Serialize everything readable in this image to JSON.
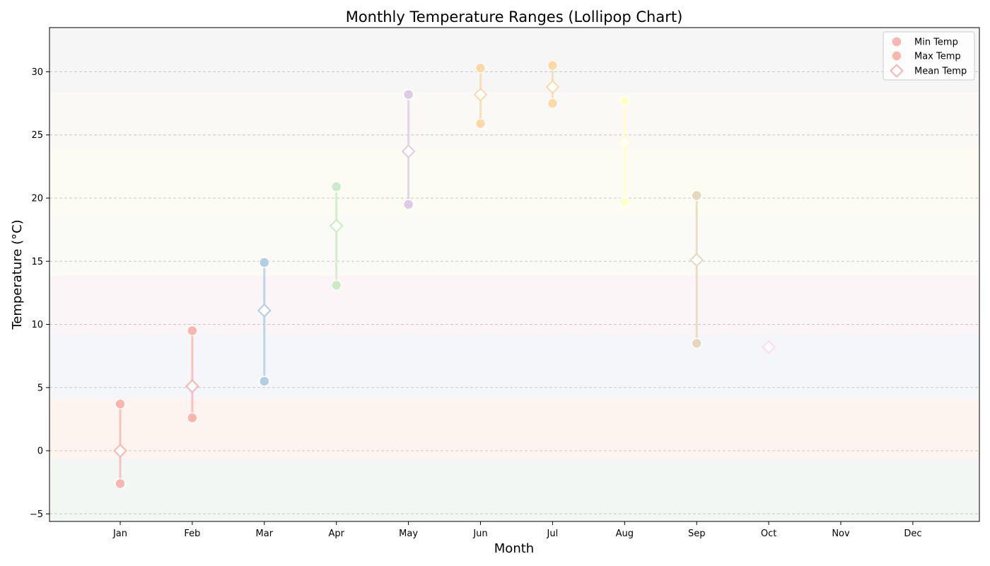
{
  "chart_data": {
    "type": "lollipop",
    "title": "Monthly Temperature Ranges (Lollipop Chart)",
    "xlabel": "Month",
    "ylabel": "Temperature (°C)",
    "ylim": [
      -5.6,
      33.5
    ],
    "yticks": [
      -5,
      0,
      5,
      10,
      15,
      20,
      25,
      30
    ],
    "ytick_labels": [
      "−5",
      "0",
      "5",
      "10",
      "15",
      "20",
      "25",
      "30"
    ],
    "grid": "horizontal dashed",
    "legend_placement": "top-right",
    "categories": [
      "Jan",
      "Feb",
      "Mar",
      "Apr",
      "May",
      "Jun",
      "Jul",
      "Aug",
      "Sep",
      "Oct",
      "Nov",
      "Dec"
    ],
    "series": [
      {
        "name": "Min Temp",
        "marker": "circle",
        "values": [
          -2.6,
          2.6,
          5.5,
          13.1,
          19.5,
          25.9,
          27.5,
          19.7,
          8.5,
          null,
          null,
          null
        ]
      },
      {
        "name": "Max Temp",
        "marker": "circle",
        "values": [
          3.7,
          9.5,
          14.9,
          20.9,
          28.2,
          30.3,
          30.5,
          27.7,
          20.2,
          null,
          null,
          null
        ]
      },
      {
        "name": "Mean Temp",
        "marker": "diamond",
        "values": [
          0.0,
          5.1,
          11.1,
          17.8,
          23.7,
          28.2,
          28.8,
          24.4,
          15.1,
          8.2,
          null,
          null
        ]
      }
    ],
    "month_colors": [
      "#fbb4ae",
      "#fbb4ae",
      "#b3cde3",
      "#ccebc5",
      "#decbe4",
      "#fed9a6",
      "#fed9a6",
      "#ffffcc",
      "#e5d8bd",
      "#fddaec",
      "#f2f2f2",
      "#f2f2f2"
    ],
    "background_bands": [
      {
        "from": -5.6,
        "to": -0.6,
        "color": "#f2f7f4"
      },
      {
        "from": -0.6,
        "to": 4.1,
        "color": "#fdf4ef"
      },
      {
        "from": 4.1,
        "to": 9.3,
        "color": "#f5f6fa"
      },
      {
        "from": 9.3,
        "to": 13.9,
        "color": "#fcf5f8"
      },
      {
        "from": 13.9,
        "to": 18.7,
        "color": "#fafaf6"
      },
      {
        "from": 18.7,
        "to": 23.9,
        "color": "#fdfcf3"
      },
      {
        "from": 23.9,
        "to": 28.4,
        "color": "#fbf9f6"
      },
      {
        "from": 28.4,
        "to": 33.5,
        "color": "#f6f6f6"
      }
    ]
  }
}
